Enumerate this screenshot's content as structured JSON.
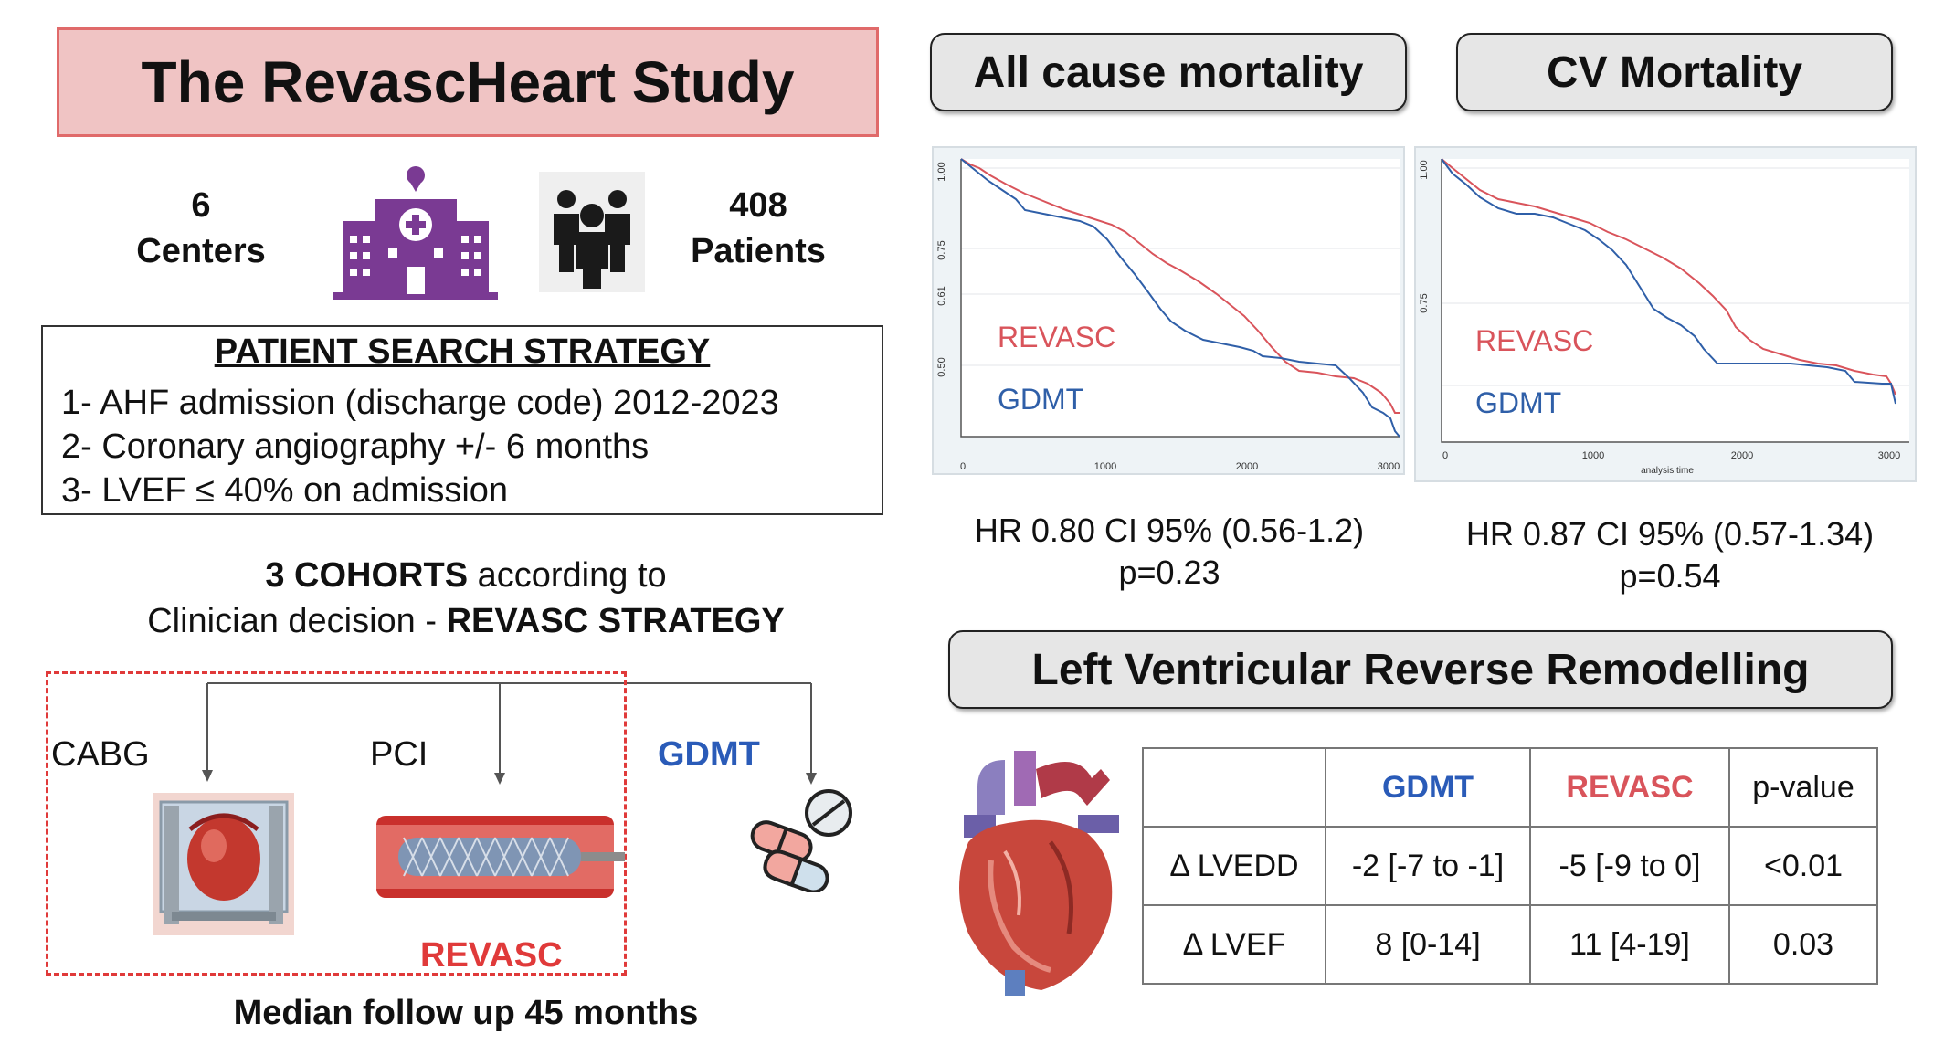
{
  "title": "The RevascHeart Study",
  "stats": {
    "centers_number": "6",
    "centers_label": "Centers",
    "patients_number": "408",
    "patients_label": "Patients"
  },
  "icons": {
    "hospital": "hospital-icon",
    "people": "people-group-icon",
    "heart": "heart-anatomy-icon",
    "pills": "pills-icon",
    "cabg": "cabg-surgery-icon",
    "stent": "stent-icon"
  },
  "search": {
    "title": "PATIENT SEARCH STRATEGY",
    "items": [
      "1- AHF admission (discharge code) 2012-2023",
      "2- Coronary angiography +/- 6 months",
      "3- LVEF ≤ 40% on admission"
    ]
  },
  "cohorts": {
    "line1_bold": "3 COHORTS",
    "line1_rest": " according to",
    "line2_plain": "Clinician decision - ",
    "line2_bold": "REVASC STRATEGY",
    "cabg": "CABG",
    "pci": "PCI",
    "gdmt": "GDMT",
    "revasc": "REVASC",
    "followup": "Median follow up 45 months"
  },
  "km_panels": [
    {
      "heading": "All cause mortality",
      "y_ticks": [
        "1.00",
        "0.75",
        "0.61",
        "0.50"
      ],
      "x_ticks": [
        "0",
        "1000",
        "2000",
        "3000"
      ],
      "xlabel": "",
      "revasc_label": "REVASC",
      "gdmt_label": "GDMT",
      "hr_line1": "HR 0.80 CI 95% (0.56-1.2)",
      "hr_line2": "p=0.23"
    },
    {
      "heading": "CV Mortality",
      "y_ticks": [
        "1.00",
        "0.75"
      ],
      "x_ticks": [
        "0",
        "1000",
        "2000",
        "3000"
      ],
      "xlabel": "analysis time",
      "revasc_label": "REVASC",
      "gdmt_label": "GDMT",
      "hr_line1": "HR 0.87 CI 95% (0.57-1.34)",
      "hr_line2": "p=0.54"
    }
  ],
  "colors": {
    "revasc": "#d9545b",
    "gdmt": "#2f5fa8",
    "revasc_text": "#e03a3a",
    "gdmt_text": "#2a5bb8",
    "title_bg": "#f0c4c4",
    "hospital": "#7a3a93"
  },
  "lv": {
    "heading": "Left Ventricular Reverse Remodelling",
    "headers": [
      "",
      "GDMT",
      "REVASC",
      "p-value"
    ],
    "rows": [
      [
        "Δ LVEDD",
        "-2 [-7 to -1]",
        "-5 [-9 to 0]",
        "<0.01"
      ],
      [
        "Δ LVEF",
        "8 [0-14]",
        "11 [4-19]",
        "0.03"
      ]
    ]
  }
}
